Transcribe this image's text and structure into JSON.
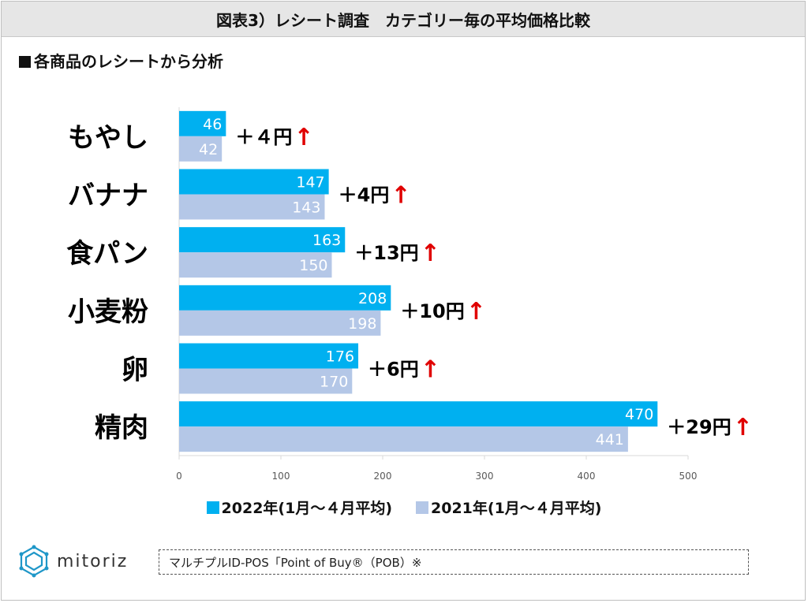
{
  "header": {
    "title": "図表3）レシート調査　カテゴリー毎の平均価格比較"
  },
  "subtitle": "各商品のレシートから分析",
  "colors": {
    "series_2022": "#00b0f0",
    "series_2021": "#b4c7e7",
    "arrow": "#e00000",
    "axis": "#d9d9d9"
  },
  "chart_data": {
    "type": "bar",
    "orientation": "horizontal",
    "categories": [
      "もやし",
      "バナナ",
      "食パン",
      "小麦粉",
      "卵",
      "精肉"
    ],
    "series": [
      {
        "name": "2022年(1月～４月平均)",
        "values": [
          46,
          147,
          163,
          208,
          176,
          470
        ]
      },
      {
        "name": "2021年(1月～４月平均)",
        "values": [
          42,
          143,
          150,
          198,
          170,
          441
        ]
      }
    ],
    "annotations": [
      "＋４円",
      "＋4円",
      "＋13円",
      "＋10円",
      "＋6円",
      "＋29円"
    ],
    "arrow": "↑",
    "xlim": [
      0,
      500
    ],
    "xticks": [
      0,
      100,
      200,
      300,
      400,
      500
    ],
    "grid": false,
    "legend": "bottom"
  },
  "logo": {
    "text": "mitoriz"
  },
  "source": "マルチプルID-POS「Point of Buy®（POB）※"
}
